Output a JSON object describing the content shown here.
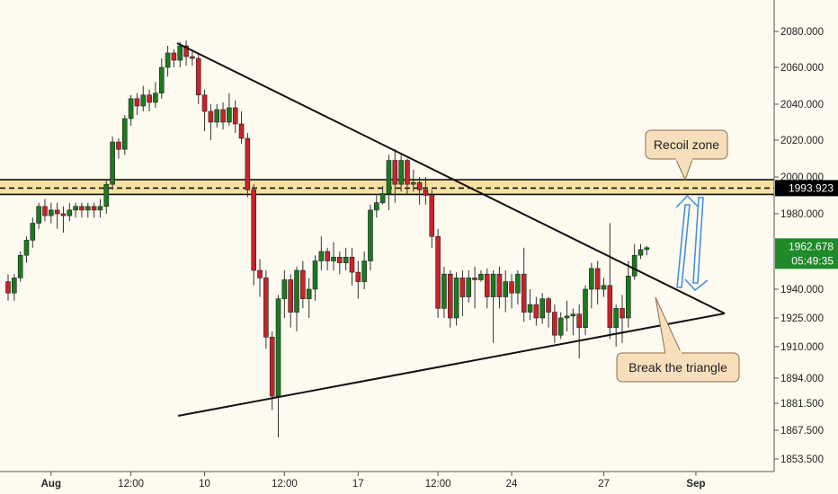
{
  "chart_data": {
    "type": "candlestick",
    "instrument_current_price": "1962.678",
    "countdown": "05:49:35",
    "level_label": "1993.923",
    "level_value": 1993.923,
    "ylim": [
      1847,
      2093
    ],
    "y_ticks": [
      {
        "v": 2080.0,
        "label": "2080.000"
      },
      {
        "v": 2060.0,
        "label": "2060.000"
      },
      {
        "v": 2040.0,
        "label": "2040.000"
      },
      {
        "v": 2020.0,
        "label": "2020.000"
      },
      {
        "v": 2000.0,
        "label": "2000.000"
      },
      {
        "v": 1980.0,
        "label": "1980.000"
      },
      {
        "v": 1940.0,
        "label": "1940.000"
      },
      {
        "v": 1925.0,
        "label": "1925.000"
      },
      {
        "v": 1910.0,
        "label": "1910.000"
      },
      {
        "v": 1894.0,
        "label": "1894.000"
      },
      {
        "v": 1881.5,
        "label": "1881.500"
      },
      {
        "v": 1867.5,
        "label": "1867.500"
      },
      {
        "v": 1853.5,
        "label": "1853.500"
      }
    ],
    "x_ticks": [
      {
        "i": 7,
        "label": "Aug"
      },
      {
        "i": 20,
        "label": "12:00"
      },
      {
        "i": 32,
        "label": "10"
      },
      {
        "i": 45,
        "label": "12:00"
      },
      {
        "i": 57,
        "label": "17"
      },
      {
        "i": 70,
        "label": "12:00"
      },
      {
        "i": 82,
        "label": "24"
      },
      {
        "i": 97,
        "label": "27"
      },
      {
        "i": 112,
        "label": "Sep"
      }
    ],
    "candles": [
      [
        1944,
        1938,
        1948,
        1934
      ],
      [
        1938,
        1946,
        1948,
        1934
      ],
      [
        1946,
        1958,
        1960,
        1944
      ],
      [
        1958,
        1966,
        1968,
        1954
      ],
      [
        1966,
        1975,
        1978,
        1962
      ],
      [
        1975,
        1984,
        1986,
        1972
      ],
      [
        1984,
        1979,
        1988,
        1976
      ],
      [
        1979,
        1982,
        1986,
        1975
      ],
      [
        1982,
        1980,
        1986,
        1972
      ],
      [
        1980,
        1979,
        1984,
        1970
      ],
      [
        1979,
        1982,
        1986,
        1976
      ],
      [
        1982,
        1984,
        1986,
        1978
      ],
      [
        1984,
        1982,
        1986,
        1978
      ],
      [
        1982,
        1984,
        1986,
        1978
      ],
      [
        1984,
        1982,
        1986,
        1978
      ],
      [
        1982,
        1984,
        1988,
        1978
      ],
      [
        1984,
        1996,
        1998,
        1980
      ],
      [
        1996,
        2019,
        2022,
        1993
      ],
      [
        2019,
        2015,
        2021,
        2010
      ],
      [
        2015,
        2032,
        2034,
        2012
      ],
      [
        2032,
        2043,
        2045,
        2028
      ],
      [
        2043,
        2039,
        2046,
        2034
      ],
      [
        2039,
        2045,
        2050,
        2036
      ],
      [
        2045,
        2041,
        2048,
        2036
      ],
      [
        2041,
        2046,
        2052,
        2038
      ],
      [
        2046,
        2060,
        2065,
        2043
      ],
      [
        2060,
        2068,
        2072,
        2055
      ],
      [
        2068,
        2064,
        2070,
        2060
      ],
      [
        2064,
        2072,
        2074,
        2060
      ],
      [
        2072,
        2066,
        2075,
        2061
      ],
      [
        2066,
        2065,
        2070,
        2061
      ],
      [
        2065,
        2045,
        2068,
        2040
      ],
      [
        2045,
        2036,
        2048,
        2025
      ],
      [
        2036,
        2030,
        2040,
        2020
      ],
      [
        2030,
        2037,
        2040,
        2027
      ],
      [
        2037,
        2030,
        2041,
        2026
      ],
      [
        2030,
        2038,
        2046,
        2028
      ],
      [
        2038,
        2029,
        2042,
        2024
      ],
      [
        2029,
        2021,
        2036,
        2018
      ],
      [
        2021,
        1993,
        2024,
        1989
      ],
      [
        1993,
        1950,
        1996,
        1942
      ],
      [
        1950,
        1946,
        1956,
        1936
      ],
      [
        1946,
        1915,
        1950,
        1909
      ],
      [
        1915,
        1885,
        1918,
        1878
      ],
      [
        1885,
        1935,
        1937,
        1864
      ],
      [
        1935,
        1945,
        1950,
        1925
      ],
      [
        1945,
        1928,
        1948,
        1920
      ],
      [
        1928,
        1950,
        1952,
        1918
      ],
      [
        1950,
        1935,
        1955,
        1930
      ],
      [
        1935,
        1940,
        1946,
        1925
      ],
      [
        1940,
        1955,
        1958,
        1934
      ],
      [
        1955,
        1960,
        1968,
        1950
      ],
      [
        1960,
        1955,
        1962,
        1950
      ],
      [
        1955,
        1957,
        1965,
        1950
      ],
      [
        1957,
        1954,
        1960,
        1948
      ],
      [
        1954,
        1957,
        1962,
        1950
      ],
      [
        1957,
        1949,
        1962,
        1942
      ],
      [
        1949,
        1944,
        1955,
        1935
      ],
      [
        1944,
        1955,
        1960,
        1940
      ],
      [
        1955,
        1982,
        1985,
        1950
      ],
      [
        1982,
        1986,
        1990,
        1978
      ],
      [
        1986,
        1991,
        1995,
        1985
      ],
      [
        1991,
        2009,
        2012,
        1982
      ],
      [
        2009,
        1996,
        2015,
        1986
      ],
      [
        1996,
        2009,
        2012,
        1992
      ],
      [
        2009,
        1996,
        2010,
        1990
      ],
      [
        1996,
        1997,
        2004,
        1992
      ],
      [
        1997,
        1993,
        2000,
        1985
      ],
      [
        1993,
        1990,
        2000,
        1985
      ],
      [
        1990,
        1968,
        1993,
        1962
      ],
      [
        1968,
        1930,
        1972,
        1925
      ],
      [
        1930,
        1948,
        1952,
        1925
      ],
      [
        1948,
        1925,
        1950,
        1920
      ],
      [
        1925,
        1946,
        1949,
        1921
      ],
      [
        1946,
        1936,
        1950,
        1926
      ],
      [
        1936,
        1946,
        1950,
        1933
      ],
      [
        1946,
        1945,
        1952,
        1930
      ],
      [
        1945,
        1948,
        1950,
        1944
      ],
      [
        1948,
        1936,
        1951,
        1930
      ],
      [
        1936,
        1948,
        1950,
        1912
      ],
      [
        1948,
        1936,
        1952,
        1930
      ],
      [
        1936,
        1944,
        1950,
        1928
      ],
      [
        1944,
        1938,
        1948,
        1930
      ],
      [
        1938,
        1948,
        1950,
        1932
      ],
      [
        1948,
        1928,
        1962,
        1923
      ],
      [
        1928,
        1932,
        1940,
        1924
      ],
      [
        1932,
        1925,
        1936,
        1921
      ],
      [
        1925,
        1935,
        1938,
        1922
      ],
      [
        1935,
        1928,
        1936,
        1920
      ],
      [
        1928,
        1916,
        1932,
        1912
      ],
      [
        1916,
        1925,
        1928,
        1914
      ],
      [
        1925,
        1926,
        1934,
        1918
      ],
      [
        1926,
        1927,
        1930,
        1916
      ],
      [
        1927,
        1920,
        1932,
        1904
      ],
      [
        1920,
        1940,
        1942,
        1916
      ],
      [
        1940,
        1951,
        1954,
        1930
      ],
      [
        1951,
        1940,
        1955,
        1932
      ],
      [
        1940,
        1942,
        1946,
        1936
      ],
      [
        1942,
        1920,
        1975,
        1914
      ],
      [
        1920,
        1930,
        1932,
        1910
      ],
      [
        1930,
        1925,
        1937,
        1912
      ],
      [
        1925,
        1947,
        1955,
        1920
      ],
      [
        1947,
        1958,
        1964,
        1945
      ],
      [
        1958,
        1961,
        1964,
        1956
      ],
      [
        1961,
        1962,
        1963,
        1958
      ]
    ],
    "annotations": [
      {
        "text": "Recoil zone"
      },
      {
        "text": "Break the triangle"
      }
    ],
    "colors": {
      "bull": "#1b7a1f",
      "bear": "#c8232b",
      "background": "#fdfbf0",
      "zone_fill": "#f7e2a4",
      "arrow": "#4a8fd9",
      "callout_fill": "#f7dfbc",
      "callout_stroke": "#8a6d50",
      "badge_price": "#1f8a2a",
      "badge_level": "#000000"
    }
  }
}
